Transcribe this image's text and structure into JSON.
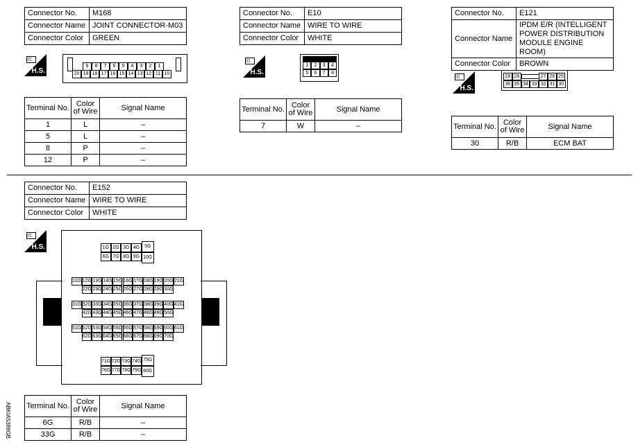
{
  "labels": {
    "no": "Connector No.",
    "name": "Connector Name",
    "color": "Connector Color",
    "terminal": "Terminal No.",
    "wire": "Color of Wire",
    "signal": "Signal Name",
    "hs": "H.S."
  },
  "connectors": [
    {
      "no": "M168",
      "name": "JOINT CONNECTOR-M03",
      "color": "GREEN",
      "terminal_rows": [
        [
          "9",
          "8",
          "7",
          "6",
          "5",
          "4",
          "3",
          "2",
          "1"
        ],
        [
          "20",
          "19",
          "18",
          "17",
          "16",
          "15",
          "14",
          "13",
          "12",
          "11",
          "10"
        ]
      ],
      "rows": [
        [
          "1",
          "L",
          "–"
        ],
        [
          "5",
          "L",
          "–"
        ],
        [
          "8",
          "P",
          "–"
        ],
        [
          "12",
          "P",
          "–"
        ]
      ]
    },
    {
      "no": "E10",
      "name": "WIRE TO WIRE",
      "color": "WHITE",
      "terminal_rows": [
        [
          "1",
          "2",
          "3",
          "4"
        ],
        [
          "5",
          "6",
          "7",
          "8"
        ]
      ],
      "rows": [
        [
          "7",
          "W",
          "–"
        ]
      ]
    },
    {
      "no": "E121",
      "name": "IPDM E/R (INTELLIGENT POWER DISTRIBUTION MODULE ENGINE ROOM)",
      "color": "BROWN",
      "terminal_rows": [
        [
          "29",
          "28",
          "",
          "27",
          "26",
          "25"
        ],
        [
          "36",
          "35",
          "34",
          "33",
          "32",
          "31",
          "30"
        ]
      ],
      "rows": [
        [
          "30",
          "R/B",
          "ECM BAT"
        ]
      ]
    },
    {
      "no": "E152",
      "name": "WIRE TO WIRE",
      "color": "WHITE",
      "terminal_groups": [
        [
          [
            "1G",
            "2G",
            "3G",
            "4G",
            "5G"
          ],
          [
            "6G",
            "7G",
            "8G",
            "9G",
            "10G"
          ]
        ],
        [
          [
            "11G",
            "12G",
            "13G",
            "14G",
            "15G",
            "16G",
            "17G",
            "18G",
            "19G",
            "20G",
            "21G"
          ],
          [
            "22G",
            "23G",
            "24G",
            "25G",
            "26G",
            "27G",
            "28G",
            "29G",
            "30G"
          ]
        ],
        [
          [
            "31G",
            "32G",
            "33G",
            "34G",
            "35G",
            "36G",
            "37G",
            "38G",
            "39G",
            "40G",
            "41G"
          ],
          [
            "42G",
            "43G",
            "44G",
            "45G",
            "46G",
            "47G",
            "48G",
            "49G",
            "50G"
          ]
        ],
        [
          [
            "51G",
            "52G",
            "53G",
            "54G",
            "55G",
            "56G",
            "57G",
            "58G",
            "59G",
            "60G",
            "61G"
          ],
          [
            "62G",
            "63G",
            "64G",
            "65G",
            "66G",
            "67G",
            "68G",
            "69G",
            "70G"
          ]
        ],
        [
          [
            "71G",
            "72G",
            "73G",
            "74G",
            "75G"
          ],
          [
            "76G",
            "77G",
            "78G",
            "79G",
            "80G"
          ]
        ]
      ],
      "rows": [
        [
          "6G",
          "R/B",
          "–"
        ],
        [
          "33G",
          "R/B",
          "–"
        ]
      ]
    }
  ],
  "side_code": "ABKIA5389GB"
}
